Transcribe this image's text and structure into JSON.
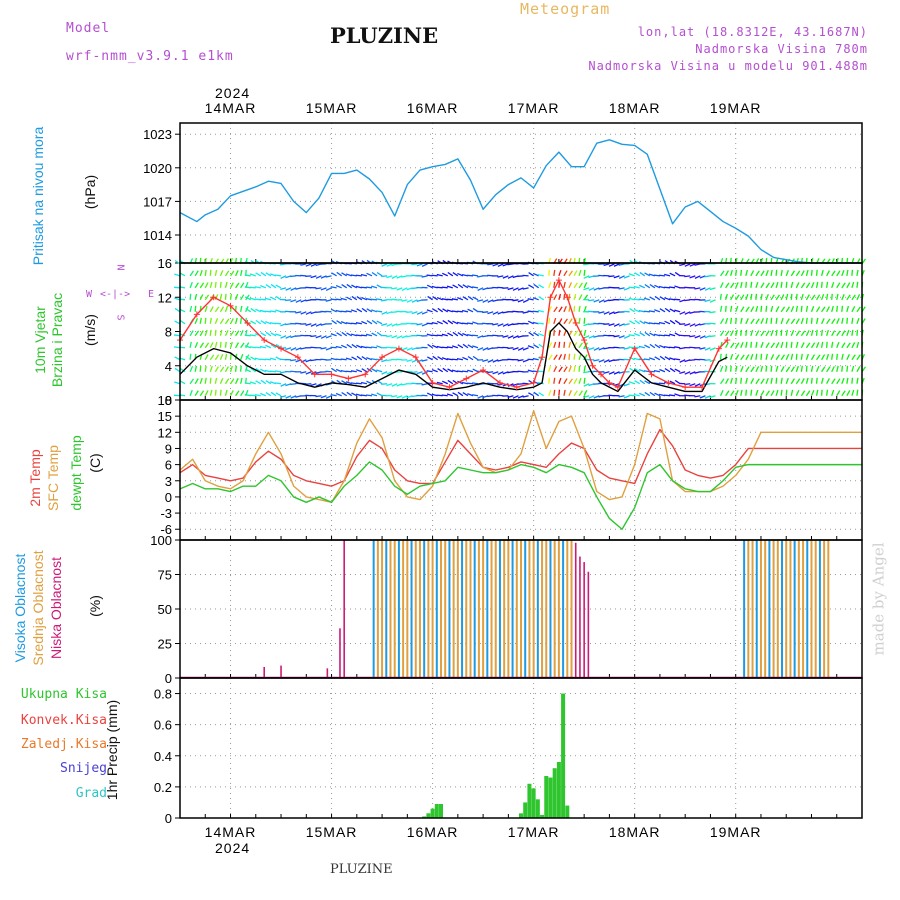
{
  "header": {
    "model_label": "Model",
    "model_name": "wrf-nmm_v3.9.1 e1km",
    "title": "PLUZINE",
    "product": "Meteogram",
    "lonlat": "lon,lat (18.8312E, 43.1687N)",
    "elevation": "Nadmorska Visina 780m",
    "model_elevation": "Nadmorska Visina u modelu 901.488m",
    "top_year": "2024",
    "bottom_year": "2024"
  },
  "footer": "PLUZINE",
  "watermark": "made by Angel",
  "colors": {
    "pressure": "#1e9be0",
    "temp2m": "#e8433f",
    "sfc": "#e0a040",
    "dewpt": "#2ec52e",
    "high_cloud": "#1e9be0",
    "mid_cloud": "#e0a040",
    "low_cloud": "#cc1a7a",
    "precip": "#2ec52e",
    "label_green": "#2ec52e",
    "label_purple": "#b44fd0",
    "label_orange": "#e8b860"
  },
  "panel_labels": {
    "pressure": "Pritisak na nivou mora",
    "pressure_unit": "(hPa)",
    "wind1": "10m Vjetar",
    "wind2": "Brzina i Pravac",
    "wind_unit": "(m/s)",
    "compass_n": "N",
    "compass_s": "S",
    "compass_w": "W",
    "compass_e": "E",
    "temp1": "2m Temp",
    "temp2": "SFC Temp",
    "temp3": "dewpt Temp",
    "temp_unit": "(C)",
    "cloud1": "Visoka Oblacnost",
    "cloud2": "Srednja Oblacnost",
    "cloud3": "Niska Oblacnost",
    "cloud_unit": "(%)",
    "precip_unit": "1hr Precip (mm)"
  },
  "precip_legend": [
    {
      "label": "Ukupna Kisa",
      "color": "#2ec52e"
    },
    {
      "label": "Konvek.Kisa",
      "color": "#e8433f"
    },
    {
      "label": "Zaledj.Kisa",
      "color": "#e87a2a"
    },
    {
      "label": "Snijeg",
      "color": "#4a3fd6"
    },
    {
      "label": "Grad",
      "color": "#2ec5c5"
    }
  ],
  "chart_data": [
    {
      "type": "line",
      "panel": "pressure",
      "ylabel": "(hPa)",
      "ylim": [
        1011.5,
        1024
      ],
      "yticks": [
        1014,
        1017,
        1020,
        1023
      ],
      "x_unit": "hours since 14MAR 00UTC",
      "x_categories": [
        "14MAR",
        "15MAR",
        "16MAR",
        "17MAR",
        "18MAR",
        "19MAR"
      ],
      "grid": true,
      "series": [
        {
          "color": "#1e9be0",
          "x": [
            -12,
            -8,
            -6,
            -3,
            0,
            3,
            6,
            9,
            12,
            15,
            18,
            21,
            24,
            27,
            30,
            33,
            36,
            39,
            42,
            45,
            48,
            51,
            54,
            57,
            60,
            63,
            66,
            69,
            72,
            75,
            78,
            81,
            84,
            87,
            90,
            93,
            96,
            99,
            102,
            105,
            108,
            111,
            114,
            117,
            120,
            123,
            126,
            129,
            132,
            135,
            138,
            141,
            144,
            147,
            150
          ],
          "y": [
            1016.0,
            1015.2,
            1015.8,
            1016.3,
            1017.5,
            1017.9,
            1018.3,
            1018.8,
            1018.6,
            1017.0,
            1016.0,
            1017.3,
            1019.5,
            1019.5,
            1019.8,
            1019.0,
            1017.8,
            1015.7,
            1018.5,
            1019.8,
            1020.1,
            1020.3,
            1020.8,
            1018.9,
            1016.3,
            1017.6,
            1018.5,
            1019.1,
            1018.2,
            1020.2,
            1021.4,
            1020.1,
            1020.1,
            1022.2,
            1022.5,
            1022.1,
            1022.0,
            1021.2,
            1018.1,
            1015.0,
            1016.5,
            1017.0,
            1016.1,
            1015.2,
            1014.6,
            1013.9,
            1012.7,
            1012.0,
            1011.8,
            1011.6,
            1011.5,
            1011.5,
            1011.5,
            1011.5,
            1011.5
          ]
        }
      ]
    },
    {
      "type": "line",
      "panel": "wind",
      "ylabel": "(m/s)",
      "ylim": [
        0,
        16
      ],
      "yticks": [
        0,
        4,
        8,
        12,
        16
      ],
      "x_unit": "hours since 14MAR 00UTC",
      "grid": true,
      "series": [
        {
          "name": "speed",
          "color": "#000000",
          "x": [
            -12,
            -8,
            -4,
            0,
            4,
            8,
            12,
            16,
            20,
            24,
            28,
            32,
            36,
            40,
            44,
            48,
            52,
            56,
            60,
            64,
            68,
            72,
            74,
            76,
            78,
            80,
            82,
            84,
            86,
            88,
            90,
            92,
            96,
            100,
            104,
            108,
            112,
            116,
            118
          ],
          "y": [
            3,
            5,
            6,
            5.5,
            4,
            3,
            3,
            2,
            1.5,
            2,
            1.8,
            1.5,
            2.5,
            3.5,
            3,
            1.5,
            1.2,
            1.5,
            2,
            1.5,
            1.2,
            1.5,
            2,
            8,
            9,
            8,
            6,
            5,
            3,
            2,
            1.5,
            1,
            3.5,
            2,
            1.5,
            1,
            1,
            4.5,
            5
          ]
        },
        {
          "name": "gust",
          "color": "#ff3333",
          "x": [
            -12,
            -8,
            -4,
            0,
            4,
            8,
            12,
            16,
            20,
            24,
            28,
            32,
            36,
            40,
            44,
            48,
            52,
            56,
            60,
            64,
            68,
            72,
            74,
            76,
            78,
            80,
            82,
            84,
            86,
            88,
            90,
            92,
            96,
            100,
            104,
            108,
            112,
            116,
            118
          ],
          "y": [
            7,
            10,
            12,
            11,
            9,
            7,
            6,
            5,
            3,
            3,
            2.5,
            3,
            5,
            6,
            5,
            2,
            1.5,
            2.5,
            3.5,
            2,
            1.5,
            2,
            5,
            12,
            14,
            12,
            9,
            7,
            4,
            3,
            2,
            1.5,
            6,
            3,
            2,
            1.5,
            1.5,
            6,
            7
          ]
        }
      ]
    },
    {
      "type": "line",
      "panel": "temperature",
      "ylabel": "(C)",
      "ylim": [
        -8,
        18
      ],
      "yticks": [
        -6,
        -3,
        0,
        3,
        6,
        9,
        12,
        15,
        18
      ],
      "x_unit": "hours since 14MAR 00UTC",
      "grid": true,
      "series": [
        {
          "color": "#e8433f",
          "x": [
            -12,
            -9,
            -6,
            -3,
            0,
            3,
            6,
            9,
            12,
            15,
            18,
            21,
            24,
            27,
            30,
            33,
            36,
            39,
            42,
            45,
            48,
            51,
            54,
            57,
            60,
            63,
            66,
            69,
            72,
            75,
            78,
            81,
            84,
            87,
            90,
            93,
            96,
            99,
            102,
            105,
            108,
            111,
            114,
            117,
            120,
            123,
            126,
            129,
            132,
            135,
            138,
            141,
            144,
            147,
            150
          ],
          "y": [
            4.5,
            6,
            4,
            3.5,
            3,
            3.5,
            6.5,
            8.5,
            7,
            4,
            3,
            2.5,
            2,
            3,
            7.5,
            10.5,
            9,
            5,
            3,
            2.5,
            2.5,
            6.5,
            10.5,
            8,
            5.5,
            5,
            5.5,
            6.5,
            6,
            5.5,
            8,
            10,
            9,
            5,
            3.5,
            3,
            2.5,
            8,
            12.5,
            9.5,
            5,
            4,
            3.5,
            4,
            6,
            9,
            9,
            9,
            9,
            9,
            9,
            9,
            9,
            9,
            9
          ]
        },
        {
          "color": "#e0a040",
          "x": [
            -12,
            -9,
            -6,
            -3,
            0,
            3,
            6,
            9,
            12,
            15,
            18,
            21,
            24,
            27,
            30,
            33,
            36,
            39,
            42,
            45,
            48,
            51,
            54,
            57,
            60,
            63,
            66,
            69,
            72,
            75,
            78,
            81,
            84,
            87,
            90,
            93,
            96,
            99,
            102,
            105,
            108,
            111,
            114,
            117,
            120,
            123,
            126,
            129,
            132,
            135,
            138,
            141,
            144,
            147,
            150
          ],
          "y": [
            5,
            7,
            3,
            2,
            1.5,
            3,
            8,
            12,
            8,
            2,
            0,
            -0.5,
            -1,
            3,
            10,
            14.5,
            11,
            3,
            0,
            -0.5,
            2,
            8,
            15.5,
            10,
            5.5,
            4.5,
            5,
            8,
            16,
            9,
            14,
            15,
            9,
            1,
            -0.5,
            0,
            6,
            15.5,
            14.5,
            3,
            1,
            1,
            1,
            2,
            4,
            7,
            12,
            12,
            12,
            12,
            12,
            12,
            12,
            12,
            12
          ]
        },
        {
          "color": "#2ec52e",
          "x": [
            -12,
            -9,
            -6,
            -3,
            0,
            3,
            6,
            9,
            12,
            15,
            18,
            21,
            24,
            27,
            30,
            33,
            36,
            39,
            42,
            45,
            48,
            51,
            54,
            57,
            60,
            63,
            66,
            69,
            72,
            75,
            78,
            81,
            84,
            87,
            90,
            93,
            96,
            99,
            102,
            105,
            108,
            111,
            114,
            117,
            120,
            123,
            126,
            129,
            132,
            135,
            138,
            141,
            144,
            147,
            150
          ],
          "y": [
            1.5,
            2.5,
            1.5,
            1.5,
            1,
            2,
            2,
            4,
            3,
            0,
            -1,
            0,
            -1,
            2,
            4,
            6.5,
            5,
            2,
            0.5,
            2,
            2.5,
            3,
            5.5,
            5,
            4.5,
            4.5,
            5,
            6,
            5.5,
            4.5,
            6,
            5.5,
            4.5,
            0,
            -4,
            -6,
            -2,
            4.5,
            6,
            3,
            1.5,
            1,
            1,
            3,
            5.5,
            6,
            6,
            6,
            6,
            6,
            6,
            6,
            6,
            6,
            6
          ]
        }
      ]
    },
    {
      "type": "bar",
      "panel": "cloud",
      "ylabel": "(%)",
      "ylim": [
        0,
        100
      ],
      "yticks": [
        0,
        25,
        50,
        75,
        100
      ],
      "x_unit": "hours since 14MAR 00UTC",
      "grid": true,
      "overcast_blocks": [
        {
          "start": 34,
          "end": 81,
          "value": 100
        },
        {
          "start": 122,
          "end": 142,
          "value": 100
        }
      ],
      "series": [
        {
          "name": "low",
          "color": "#cc1a7a",
          "x": [
            -12,
            8,
            12,
            23,
            26,
            27,
            82,
            83,
            84,
            85
          ],
          "y": [
            0.5,
            8,
            9,
            7,
            36,
            100,
            98,
            88,
            84,
            77
          ]
        }
      ]
    },
    {
      "type": "bar",
      "panel": "precip",
      "ylabel": "1hr Precip (mm)",
      "ylim": [
        0,
        0.9
      ],
      "yticks": [
        0,
        0.2,
        0.4,
        0.6,
        0.8
      ],
      "x_unit": "hours since 14MAR 00UTC",
      "grid": true,
      "series": [
        {
          "name": "Ukupna Kisa",
          "color": "#2ec52e",
          "x": [
            46,
            47,
            48,
            49,
            50,
            69,
            70,
            71,
            72,
            73,
            74,
            75,
            76,
            77,
            78,
            79,
            80
          ],
          "y": [
            0.01,
            0.03,
            0.06,
            0.09,
            0.09,
            0.03,
            0.1,
            0.22,
            0.19,
            0.12,
            0.02,
            0.27,
            0.26,
            0.32,
            0.36,
            0.8,
            0.08
          ]
        }
      ]
    }
  ]
}
